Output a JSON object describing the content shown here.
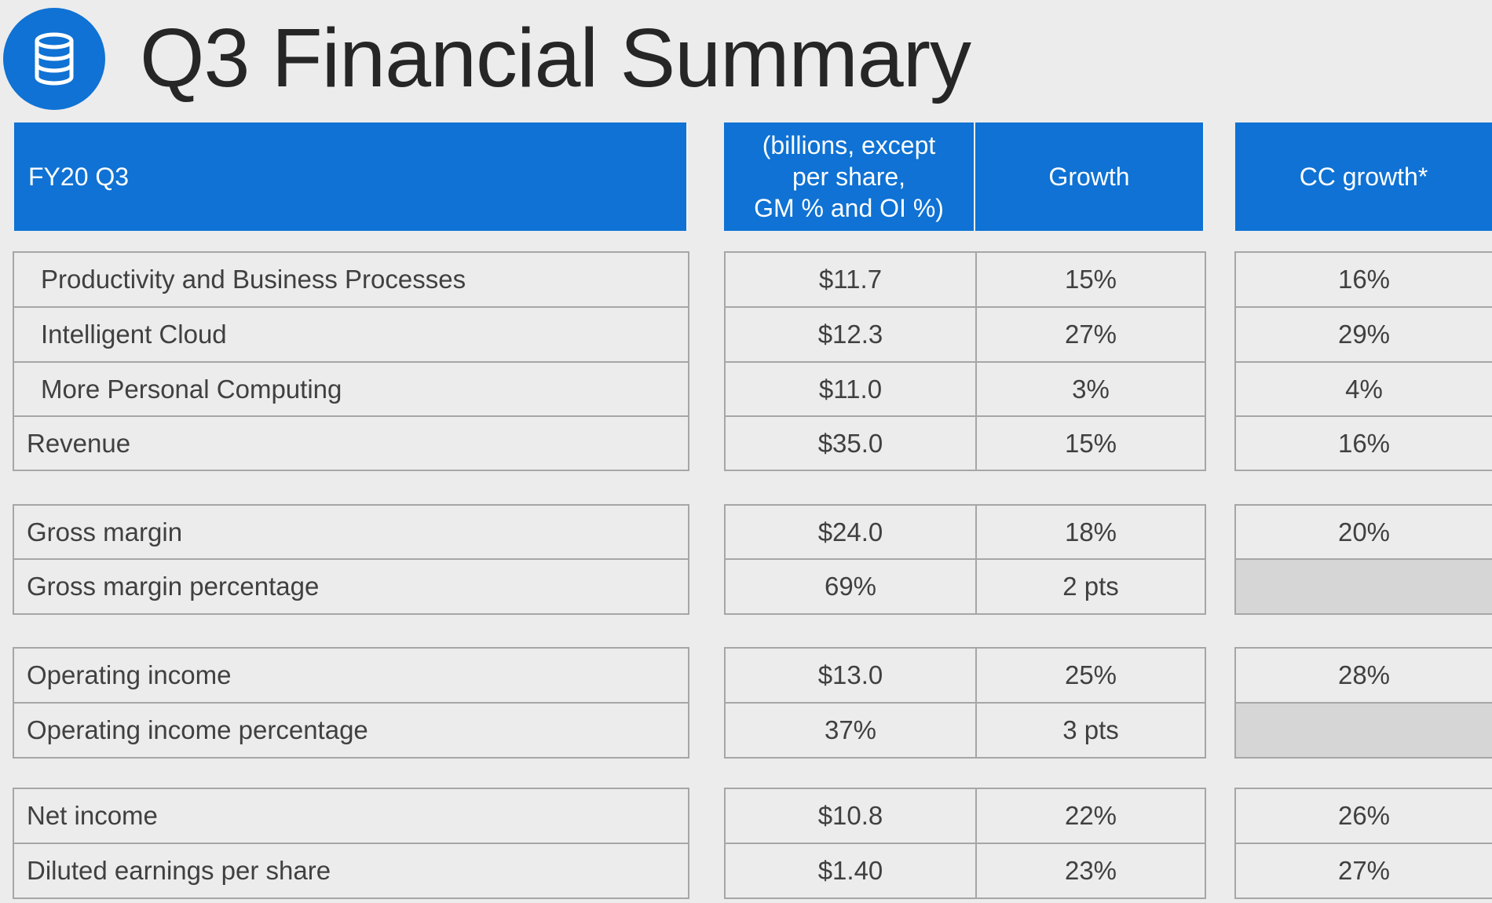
{
  "title": "Q3 Financial Summary",
  "logo_icon": "database-icon",
  "header": {
    "period": "FY20 Q3",
    "amount_line1": "(billions, except",
    "amount_line2": "per share,",
    "amount_line3": "GM % and OI %)",
    "growth": "Growth",
    "cc_growth": "CC growth*"
  },
  "groups": [
    {
      "rows": [
        {
          "label": "Productivity and Business Processes",
          "amount": "$11.7",
          "growth": "15%",
          "cc_growth": "16%"
        },
        {
          "label": "Intelligent Cloud",
          "amount": "$12.3",
          "growth": "27%",
          "cc_growth": "29%"
        },
        {
          "label": "More Personal Computing",
          "amount": "$11.0",
          "growth": "3%",
          "cc_growth": "4%"
        },
        {
          "label": "Revenue",
          "amount": "$35.0",
          "growth": "15%",
          "cc_growth": "16%"
        }
      ]
    },
    {
      "rows": [
        {
          "label": "Gross margin",
          "amount": "$24.0",
          "growth": "18%",
          "cc_growth": "20%"
        },
        {
          "label": "Gross margin percentage",
          "amount": "69%",
          "growth": "2 pts",
          "cc_growth": ""
        }
      ]
    },
    {
      "rows": [
        {
          "label": "Operating income",
          "amount": "$13.0",
          "growth": "25%",
          "cc_growth": "28%"
        },
        {
          "label": "Operating income percentage",
          "amount": "37%",
          "growth": "3 pts",
          "cc_growth": ""
        }
      ]
    },
    {
      "rows": [
        {
          "label": "Net income",
          "amount": "$10.8",
          "growth": "22%",
          "cc_growth": "26%"
        },
        {
          "label": "Diluted earnings per share",
          "amount": "$1.40",
          "growth": "23%",
          "cc_growth": "27%"
        }
      ]
    }
  ],
  "colors": {
    "accent": "#0f72d4",
    "background": "#ececec",
    "empty_cell": "#d6d6d6",
    "border": "#a6a6a6"
  }
}
